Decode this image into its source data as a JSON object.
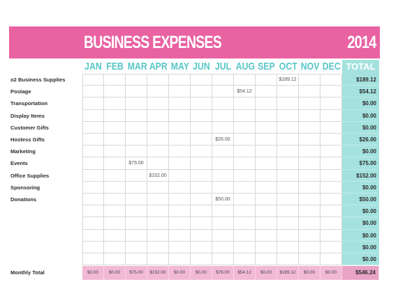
{
  "banner": {
    "title": "BUSINESS EXPENSES",
    "year": "2014"
  },
  "months": [
    "JAN",
    "FEB",
    "MAR",
    "APR",
    "MAY",
    "JUN",
    "JUL",
    "AUG",
    "SEP",
    "OCT",
    "NOV",
    "DEC"
  ],
  "total_header": "TOTAL",
  "rows": [
    {
      "label": "o2 Business Supplies",
      "cells": [
        "",
        "",
        "",
        "",
        "",
        "",
        "",
        "",
        "",
        "$189.12",
        "",
        ""
      ],
      "total": "$189.12"
    },
    {
      "label": "Postage",
      "cells": [
        "",
        "",
        "",
        "",
        "",
        "",
        "",
        "$54.12",
        "",
        "",
        "",
        ""
      ],
      "total": "$54.12"
    },
    {
      "label": "Transportation",
      "cells": [
        "",
        "",
        "",
        "",
        "",
        "",
        "",
        "",
        "",
        "",
        "",
        ""
      ],
      "total": "$0.00"
    },
    {
      "label": "Display Items",
      "cells": [
        "",
        "",
        "",
        "",
        "",
        "",
        "",
        "",
        "",
        "",
        "",
        ""
      ],
      "total": "$0.00"
    },
    {
      "label": "Customer Gifts",
      "cells": [
        "",
        "",
        "",
        "",
        "",
        "",
        "",
        "",
        "",
        "",
        "",
        ""
      ],
      "total": "$0.00"
    },
    {
      "label": "Hostess Gifts",
      "cells": [
        "",
        "",
        "",
        "",
        "",
        "",
        "$26.00",
        "",
        "",
        "",
        "",
        ""
      ],
      "total": "$26.00"
    },
    {
      "label": "Marketing",
      "cells": [
        "",
        "",
        "",
        "",
        "",
        "",
        "",
        "",
        "",
        "",
        "",
        ""
      ],
      "total": "$0.00"
    },
    {
      "label": "Events",
      "cells": [
        "",
        "",
        "$75.00",
        "",
        "",
        "",
        "",
        "",
        "",
        "",
        "",
        ""
      ],
      "total": "$75.00"
    },
    {
      "label": "Office Supplies",
      "cells": [
        "",
        "",
        "",
        "$152.00",
        "",
        "",
        "",
        "",
        "",
        "",
        "",
        ""
      ],
      "total": "$152.00"
    },
    {
      "label": "Sponsoring",
      "cells": [
        "",
        "",
        "",
        "",
        "",
        "",
        "",
        "",
        "",
        "",
        "",
        ""
      ],
      "total": "$0.00"
    },
    {
      "label": "Donations",
      "cells": [
        "",
        "",
        "",
        "",
        "",
        "",
        "$50.00",
        "",
        "",
        "",
        "",
        ""
      ],
      "total": "$50.00"
    },
    {
      "label": "",
      "cells": [
        "",
        "",
        "",
        "",
        "",
        "",
        "",
        "",
        "",
        "",
        "",
        ""
      ],
      "total": "$0.00"
    },
    {
      "label": "",
      "cells": [
        "",
        "",
        "",
        "",
        "",
        "",
        "",
        "",
        "",
        "",
        "",
        ""
      ],
      "total": "$0.00"
    },
    {
      "label": "",
      "cells": [
        "",
        "",
        "",
        "",
        "",
        "",
        "",
        "",
        "",
        "",
        "",
        ""
      ],
      "total": "$0.00"
    },
    {
      "label": "",
      "cells": [
        "",
        "",
        "",
        "",
        "",
        "",
        "",
        "",
        "",
        "",
        "",
        ""
      ],
      "total": "$0.00"
    },
    {
      "label": "",
      "cells": [
        "",
        "",
        "",
        "",
        "",
        "",
        "",
        "",
        "",
        "",
        "",
        ""
      ],
      "total": "$0.00"
    }
  ],
  "monthly_total": {
    "label": "Monthly Total",
    "values": [
      "$0.00",
      "$0.00",
      "$75.00",
      "$152.00",
      "$0.00",
      "$0.00",
      "$76.00",
      "$54.12",
      "$0.00",
      "$189.12",
      "$0.00",
      "$0.00"
    ],
    "grand_total": "$546.24"
  },
  "colors": {
    "pink": "#e962a2",
    "teal": "#58c6c7",
    "teal_fill": "#a5e2df",
    "pink_fill": "#f2b9d5"
  }
}
